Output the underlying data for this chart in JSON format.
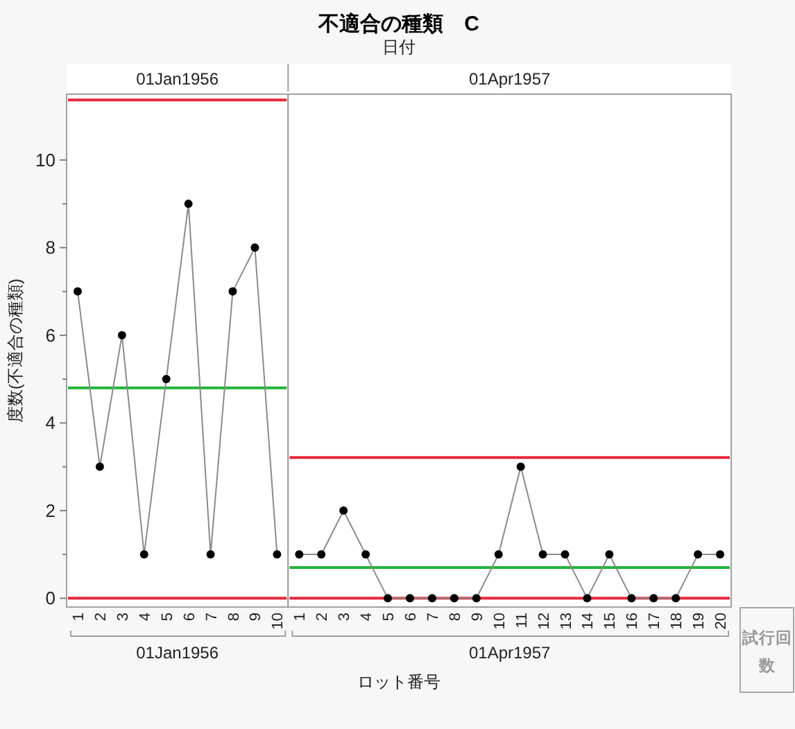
{
  "chart_data": [
    {
      "type": "line",
      "ylabel": "度数(不適合の種類)",
      "x2label": "01Jan1956",
      "xlabel": "01Jan1956",
      "categories": [
        "1",
        "2",
        "3",
        "4",
        "5",
        "6",
        "7",
        "8",
        "9",
        "10"
      ],
      "series": [
        {
          "color": "#000000",
          "values": [
            7,
            3,
            6,
            1,
            5,
            9,
            1,
            7,
            8,
            1
          ]
        }
      ],
      "ylim": [
        -0.2,
        11.5
      ],
      "yticks": [
        0,
        {
          "value": 1,
          "label": null
        },
        2,
        {
          "value": 3,
          "label": null
        },
        4,
        {
          "value": 5,
          "label": null
        },
        6,
        {
          "value": 7,
          "label": null
        },
        8,
        {
          "value": 9,
          "label": null
        },
        10
      ],
      "ref_lines": [
        {
          "axis": "y",
          "value": 11.37,
          "color": "#e8283c"
        },
        {
          "axis": "y",
          "value": 4.8,
          "color": "#22b33a"
        },
        {
          "axis": "y",
          "value": 0,
          "color": "#e8283c"
        }
      ],
      "marker": "circle",
      "line_style": "solid"
    },
    {
      "type": "line",
      "title": "不適合の種類　C",
      "subtitle": "日付",
      "x2label": "01Apr1957",
      "xlabel": "01Apr1957",
      "annotations": [
        "ロット番号",
        "試行回数"
      ],
      "categories": [
        "1",
        "2",
        "3",
        "4",
        "5",
        "6",
        "7",
        "8",
        "9",
        "10",
        "11",
        "12",
        "13",
        "14",
        "15",
        "16",
        "17",
        "18",
        "19",
        "20"
      ],
      "series": [
        {
          "color": "#000000",
          "values": [
            1,
            1,
            2,
            1,
            0,
            0,
            0,
            0,
            0,
            1,
            3,
            1,
            1,
            0,
            1,
            0,
            0,
            0,
            1,
            1
          ]
        }
      ],
      "ylim": [
        -0.2,
        11.5
      ],
      "tick_labels": "x",
      "ref_lines": [
        {
          "axis": "y",
          "value": 3.21,
          "color": "#e8283c"
        },
        {
          "axis": "y",
          "value": 0.7,
          "color": "#22b33a"
        },
        {
          "axis": "y",
          "value": 0,
          "color": "#e8283c"
        }
      ],
      "marker": "circle",
      "line_style": "solid"
    }
  ]
}
